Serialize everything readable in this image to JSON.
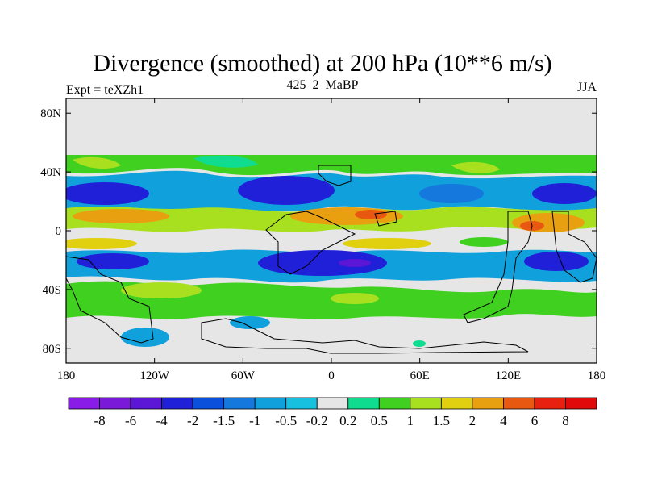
{
  "chart_data": {
    "type": "heatmap",
    "title": "Divergence (smoothed) at 200 hPa (10**6 m/s)",
    "left_label": "Expt = teXZh1",
    "center_label": "425_2_MaBP",
    "right_label": "JJA",
    "x_ticks": [
      "180",
      "120W",
      "60W",
      "0",
      "60E",
      "120E",
      "180"
    ],
    "x_tick_values": [
      -180,
      -120,
      -60,
      0,
      60,
      120,
      180
    ],
    "y_ticks": [
      "80N",
      "40N",
      "0",
      "40S",
      "80S"
    ],
    "y_tick_values": [
      80,
      40,
      0,
      -40,
      -80
    ],
    "xlim": [
      -180,
      180
    ],
    "ylim": [
      -90,
      90
    ],
    "colorbar": {
      "labels": [
        "-8",
        "-6",
        "-4",
        "-2",
        "-1.5",
        "-1",
        "-0.5",
        "-0.2",
        "0.2",
        "0.5",
        "1",
        "1.5",
        "2",
        "4",
        "6",
        "8"
      ],
      "colors": [
        "#8a1ce8",
        "#7a1ad8",
        "#5b16d6",
        "#2020d8",
        "#0a50dc",
        "#1478dc",
        "#10a0dc",
        "#18c0e0",
        "#e6e6e6",
        "#10dc90",
        "#40d020",
        "#a8e020",
        "#e0d010",
        "#e8a010",
        "#e85810",
        "#e82010",
        "#e00a0a"
      ]
    },
    "bands": [
      {
        "lat_range": [
          58,
          90
        ],
        "value": 0,
        "description": "near zero"
      },
      {
        "lat_range": [
          40,
          55
        ],
        "value": 1,
        "description": "positive band, ~0.5 to 1.5"
      },
      {
        "lat_range": [
          22,
          40
        ],
        "value": -1.5,
        "description": "negative band, locally below -2"
      },
      {
        "lat_range": [
          5,
          20
        ],
        "value": 2,
        "description": "positive band, locally 4 to 6"
      },
      {
        "lat_range": [
          -5,
          3
        ],
        "value": 0,
        "description": "mixed"
      },
      {
        "lat_range": [
          -30,
          -10
        ],
        "value": -2,
        "description": "strong negative band, locally below -4"
      },
      {
        "lat_range": [
          -55,
          -35
        ],
        "value": 1,
        "description": "positive band, ~0.5 to 1.5"
      },
      {
        "lat_range": [
          -90,
          -58
        ],
        "value": 0,
        "description": "near zero"
      }
    ]
  }
}
